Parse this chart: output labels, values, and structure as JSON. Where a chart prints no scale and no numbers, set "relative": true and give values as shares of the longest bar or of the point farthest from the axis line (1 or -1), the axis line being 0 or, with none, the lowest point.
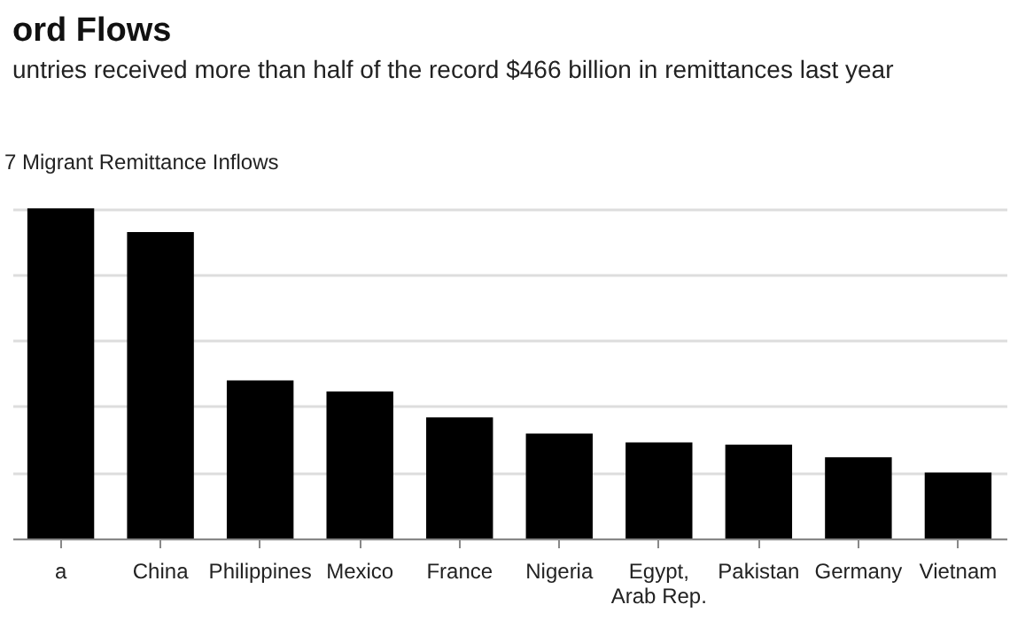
{
  "chart_data": {
    "type": "bar",
    "title": "ord Flows",
    "subtitle": "untries received more than half of the record $466 billion in remittances last year",
    "ylabel": "7 Migrant Remittance Inflows",
    "relative": true,
    "grid": "y",
    "categories": [
      "a",
      "China",
      "Philippines",
      "Mexico",
      "France",
      "Nigeria",
      "Egypt, Arab Rep.",
      "Pakistan",
      "Germany",
      "Vietnam"
    ],
    "values": [
      1,
      0.928,
      0.479,
      0.445,
      0.367,
      0.318,
      0.291,
      0.284,
      0.246,
      0.2
    ],
    "color": "#000000"
  }
}
